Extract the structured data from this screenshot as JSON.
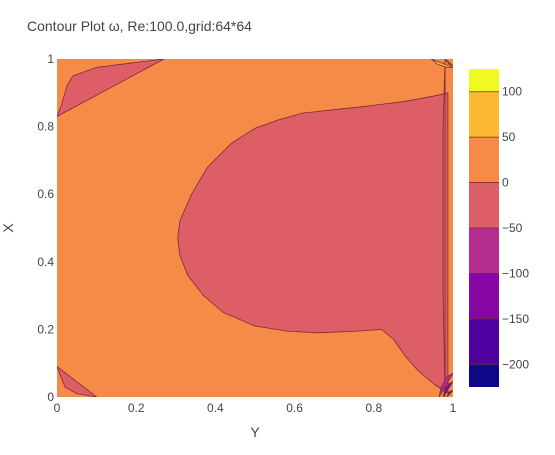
{
  "colors": {
    "background": "#ffffff",
    "text": "#444444",
    "contour_line": "#7a2c37"
  },
  "chart_data": {
    "type": "contour",
    "title": "Contour Plot ω, Re:100.0,grid:64*64",
    "xlabel": "Y",
    "ylabel": "X",
    "xlim": [
      0,
      1
    ],
    "ylim": [
      0,
      1
    ],
    "x_ticks": [
      0,
      0.2,
      0.4,
      0.6,
      0.8,
      1
    ],
    "x_tick_labels": [
      "0",
      "0.2",
      "0.4",
      "0.6",
      "0.8",
      "1"
    ],
    "y_ticks": [
      0,
      0.2,
      0.4,
      0.6,
      0.8,
      1
    ],
    "y_tick_labels": [
      "0",
      "0.2",
      "0.4",
      "0.6",
      "0.8",
      "1"
    ],
    "grid": false,
    "legend": "colorbar-right",
    "colorbar": {
      "range": [
        -225,
        125
      ],
      "levels": [
        {
          "from": -225,
          "to": -200,
          "color": "#0d0887"
        },
        {
          "from": -200,
          "to": -150,
          "color": "#5002a1"
        },
        {
          "from": -150,
          "to": -100,
          "color": "#8707a6"
        },
        {
          "from": -100,
          "to": -50,
          "color": "#b42d8e"
        },
        {
          "from": -50,
          "to": 0,
          "color": "#dd5e66"
        },
        {
          "from": 0,
          "to": 50,
          "color": "#f58b47"
        },
        {
          "from": 50,
          "to": 100,
          "color": "#fdb831"
        },
        {
          "from": 100,
          "to": 125,
          "color": "#f0f921"
        }
      ],
      "ticks": [
        100,
        50,
        0,
        -50,
        -100,
        -150,
        -200
      ],
      "tick_labels": [
        "100",
        "50",
        "0",
        "−50",
        "−100",
        "−150",
        "−200"
      ]
    },
    "regions": [
      {
        "name": "background-0-to-50",
        "level": "0 to 50",
        "color": "#f58b47"
      },
      {
        "name": "central-negative-region",
        "level": "-50 to 0",
        "color": "#dd5e66",
        "outline": [
          [
            0.987,
            0.9
          ],
          [
            0.95,
            0.89
          ],
          [
            0.88,
            0.875
          ],
          [
            0.78,
            0.86
          ],
          [
            0.7,
            0.85
          ],
          [
            0.62,
            0.84
          ],
          [
            0.56,
            0.82
          ],
          [
            0.5,
            0.795
          ],
          [
            0.44,
            0.75
          ],
          [
            0.38,
            0.68
          ],
          [
            0.34,
            0.6
          ],
          [
            0.31,
            0.52
          ],
          [
            0.305,
            0.47
          ],
          [
            0.31,
            0.42
          ],
          [
            0.33,
            0.36
          ],
          [
            0.37,
            0.3
          ],
          [
            0.42,
            0.25
          ],
          [
            0.5,
            0.21
          ],
          [
            0.58,
            0.195
          ],
          [
            0.66,
            0.19
          ],
          [
            0.76,
            0.195
          ],
          [
            0.82,
            0.2
          ],
          [
            0.85,
            0.17
          ],
          [
            0.88,
            0.12
          ],
          [
            0.91,
            0.08
          ],
          [
            0.95,
            0.04
          ],
          [
            0.987,
            0.01
          ]
        ]
      },
      {
        "name": "top-strip-negative",
        "level": "-50 to 0",
        "color": "#dd5e66",
        "outline": [
          [
            0,
            0.83
          ],
          [
            0.01,
            0.86
          ],
          [
            0.025,
            0.92
          ],
          [
            0.04,
            0.95
          ],
          [
            0.1,
            0.975
          ],
          [
            0.2,
            0.99
          ],
          [
            0.27,
            1
          ]
        ]
      },
      {
        "name": "right-strip-negative",
        "level": "-50 to 0",
        "color": "#dd5e66",
        "outline": [
          [
            0.98,
            1
          ],
          [
            0.975,
            0.8
          ],
          [
            0.975,
            0.3
          ],
          [
            0.98,
            0
          ]
        ]
      },
      {
        "name": "bottom-left-negative",
        "level": "-50 to 0",
        "color": "#dd5e66",
        "outline": [
          [
            0,
            0.09
          ],
          [
            0.02,
            0.03
          ],
          [
            0.05,
            0.01
          ],
          [
            0.1,
            0
          ]
        ]
      },
      {
        "name": "top-right-corner-positive",
        "level": "50 to 100",
        "color": "#fdb831",
        "outline": [
          [
            0.945,
            1
          ],
          [
            0.96,
            0.985
          ],
          [
            0.985,
            0.975
          ],
          [
            1,
            0.975
          ]
        ]
      },
      {
        "name": "top-right-corner-negative",
        "level": "-100 to -50",
        "color": "#b42d8e",
        "outline": [
          [
            0.98,
            1
          ],
          [
            0.99,
            0.985
          ],
          [
            1,
            0.98
          ]
        ]
      },
      {
        "name": "bottom-right-corner-1",
        "level": "-100 to -50",
        "color": "#b42d8e",
        "outline": [
          [
            0.965,
            0
          ],
          [
            0.97,
            0.03
          ],
          [
            0.985,
            0.06
          ],
          [
            1,
            0.07
          ]
        ]
      },
      {
        "name": "bottom-right-corner-2",
        "level": "-150 to -100",
        "color": "#8707a6",
        "outline": [
          [
            0.975,
            0
          ],
          [
            0.98,
            0.025
          ],
          [
            0.99,
            0.04
          ],
          [
            1,
            0.045
          ]
        ]
      },
      {
        "name": "bottom-right-corner-3",
        "level": "-200 to -150",
        "color": "#5002a1",
        "outline": [
          [
            0.985,
            0
          ],
          [
            0.99,
            0.015
          ],
          [
            1,
            0.02
          ]
        ]
      }
    ]
  }
}
